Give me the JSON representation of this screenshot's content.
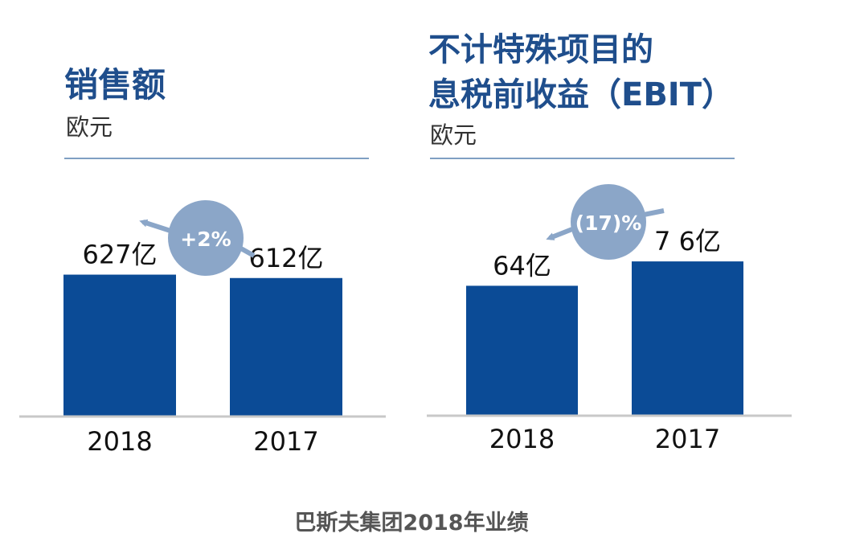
{
  "caption": "巴斯夫集团2018年业绩",
  "colors": {
    "bar": "#0b4b96",
    "title": "#1f4e8c",
    "rule": "#7f9fc3",
    "baseline": "#c8c8c8",
    "badge": "#8ba6c8",
    "badge_text": "#ffffff"
  },
  "chart_data": [
    {
      "type": "bar",
      "title": "销售额",
      "unit": "欧元",
      "categories": [
        "2018",
        "2017"
      ],
      "values": [
        627,
        612
      ],
      "value_labels": [
        "627亿",
        "612亿"
      ],
      "change_label": "+2%",
      "ylim": [
        0,
        700
      ]
    },
    {
      "type": "bar",
      "title": [
        "不计特殊项目的",
        "息税前收益（EBIT）"
      ],
      "unit": "欧元",
      "categories": [
        "2018",
        "2017"
      ],
      "values": [
        64,
        76
      ],
      "value_labels": [
        "64亿",
        "7 6亿"
      ],
      "change_label": "(17)%",
      "ylim": [
        0,
        80
      ]
    }
  ]
}
